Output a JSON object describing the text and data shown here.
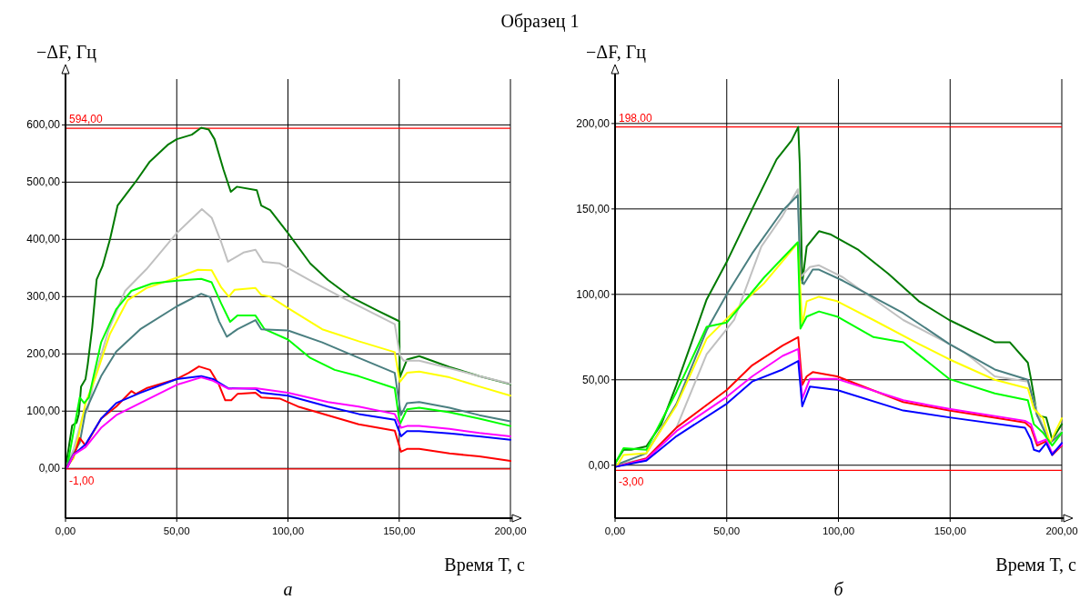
{
  "chart_data": [
    {
      "type": "line",
      "title": "Образец 1",
      "ylabel": "−ΔF, Гц",
      "xlabel": "Время T, с",
      "annotations": [
        "а"
      ],
      "grid": true,
      "line_style": "solid",
      "marker": "none",
      "xlim": [
        0,
        200
      ],
      "xticks": [
        {
          "value": 0,
          "label": "0,00"
        },
        {
          "value": 50,
          "label": "50,00"
        },
        {
          "value": 100,
          "label": "100,00"
        },
        {
          "value": 150,
          "label": "150,00"
        },
        {
          "value": 200,
          "label": "200,00"
        }
      ],
      "ylim": [
        -87,
        680
      ],
      "yticks": [
        {
          "value": 0,
          "label": "0,00"
        },
        {
          "value": 100,
          "label": "100,00"
        },
        {
          "value": 200,
          "label": "200,00"
        },
        {
          "value": 300,
          "label": "300,00"
        },
        {
          "value": 400,
          "label": "400,00"
        },
        {
          "value": 500,
          "label": "500,00"
        },
        {
          "value": 600,
          "label": "600,00"
        }
      ],
      "ref_lines": [
        {
          "axis": "y",
          "value": 594,
          "label": "594,00",
          "color": "#ff0000"
        },
        {
          "axis": "y",
          "value": -1,
          "label": "-1,00",
          "color": "#ff0000"
        }
      ],
      "series": [
        {
          "color": "#007a00",
          "x": [
            0,
            3,
            5,
            6,
            7,
            9,
            10,
            12,
            14,
            16.6,
            20,
            23.4,
            31.6,
            37.7,
            45.9,
            50,
            56.8,
            61,
            64.4,
            67,
            71,
            74.3,
            77,
            86,
            88,
            92,
            100,
            110,
            118,
            128,
            140,
            149.5,
            150,
            150.3,
            153.5,
            159,
            172.6,
            186,
            200
          ],
          "values": [
            0,
            75,
            80,
            95,
            143,
            156,
            182,
            246,
            330,
            353,
            400,
            459,
            501,
            535,
            565,
            575,
            583,
            595,
            592,
            575,
            522,
            483,
            492,
            486,
            459,
            451,
            411,
            358,
            329,
            300,
            276,
            258,
            257,
            159,
            190,
            196,
            177,
            161,
            147
          ]
        },
        {
          "color": "#c0c0c0",
          "x": [
            0,
            3.7,
            7.8,
            9.8,
            13.2,
            19.3,
            26.8,
            36.4,
            50,
            61.3,
            65.7,
            70,
            73,
            80,
            85.4,
            88.8,
            96.3,
            111,
            126,
            148,
            150.3,
            152,
            159,
            172.6,
            186,
            200
          ],
          "values": [
            0,
            34,
            93,
            100,
            161,
            241,
            310,
            348,
            411,
            453,
            438,
            395,
            361,
            377,
            382,
            361,
            358,
            326,
            295,
            252,
            198,
            188,
            188,
            175,
            161,
            148
          ]
        },
        {
          "color": "#ffff00",
          "x": [
            0,
            3.7,
            9,
            13.2,
            20,
            28,
            36.4,
            50,
            59.5,
            65.7,
            70,
            73.4,
            76,
            85.4,
            88,
            92,
            100,
            115.4,
            131.8,
            148,
            150.3,
            153.5,
            159,
            172.6,
            186,
            200
          ],
          "values": [
            0,
            18,
            114,
            156,
            235,
            294,
            315,
            333,
            347,
            346,
            316,
            300,
            312,
            315,
            303,
            300,
            280,
            243,
            222,
            203,
            151,
            167,
            169,
            159,
            143,
            127
          ]
        },
        {
          "color": "#00ff00",
          "x": [
            0,
            1,
            6.4,
            8.4,
            10.5,
            16,
            22.8,
            29.6,
            39,
            50,
            61,
            65.7,
            70,
            74,
            77.3,
            85.4,
            89.5,
            100,
            110,
            121,
            131.8,
            148,
            150.3,
            153.5,
            159,
            172.6,
            186,
            200
          ],
          "values": [
            0,
            8,
            124,
            114,
            124,
            220,
            278,
            310,
            323,
            328,
            331,
            325,
            288,
            256,
            267,
            267,
            243,
            225,
            193,
            172,
            161,
            140,
            77,
            103,
            106,
            98,
            87,
            74
          ]
        },
        {
          "color": "#4a7f80",
          "x": [
            0,
            1,
            6.4,
            9,
            16,
            22.8,
            33.6,
            50,
            61,
            65,
            69,
            72.5,
            77.3,
            85.4,
            88,
            100,
            115.4,
            131.8,
            148,
            150.8,
            153.5,
            159,
            172.6,
            186,
            200
          ],
          "values": [
            0,
            8,
            45,
            100,
            161,
            204,
            243,
            283,
            305,
            299,
            257,
            230,
            243,
            259,
            243,
            241,
            220,
            193,
            167,
            93,
            114,
            116,
            106,
            93,
            82
          ]
        },
        {
          "color": "#ff0000",
          "x": [
            0,
            1,
            4.4,
            6.4,
            9,
            16,
            22.8,
            29.6,
            31.6,
            36.4,
            50,
            55.4,
            60,
            65,
            69,
            71.8,
            74.5,
            77.3,
            85.4,
            88,
            96.3,
            104.5,
            131.8,
            148,
            150.8,
            153.5,
            159,
            172.6,
            186,
            200
          ],
          "values": [
            0,
            3,
            29,
            53,
            40,
            87,
            108,
            135,
            130,
            140,
            156,
            167,
            178,
            172,
            146,
            119,
            119,
            130,
            132,
            124,
            122,
            108,
            77,
            66,
            29,
            34,
            34,
            26,
            21,
            13
          ]
        },
        {
          "color": "#0000ff",
          "x": [
            0,
            1,
            3.7,
            9,
            16,
            22.8,
            33.6,
            50,
            61,
            66.3,
            73.2,
            85.4,
            88,
            100,
            118,
            131.8,
            148,
            150.8,
            153.5,
            159,
            172.6,
            186,
            200
          ],
          "values": [
            0,
            3,
            24,
            42,
            87,
            114,
            132,
            156,
            161,
            156,
            140,
            139,
            132,
            127,
            108,
            95,
            85,
            56,
            65,
            65,
            61,
            56,
            50
          ]
        },
        {
          "color": "#ff00ff",
          "x": [
            0,
            1,
            3.7,
            9,
            16,
            22.8,
            33.6,
            50,
            61,
            66.3,
            73.2,
            85.4,
            100,
            118,
            131.8,
            148,
            150.8,
            153.5,
            159,
            172.6,
            186,
            200
          ],
          "values": [
            0,
            3,
            24,
            37,
            71,
            93,
            114,
            146,
            159,
            153,
            139,
            140,
            132,
            116,
            108,
            95,
            71,
            74,
            74,
            69,
            62,
            56
          ]
        }
      ]
    },
    {
      "type": "line",
      "ylabel": "−ΔF, Гц",
      "xlabel": "Время T, с",
      "annotations": [
        "б"
      ],
      "grid": true,
      "line_style": "solid",
      "marker": "none",
      "xlim": [
        0,
        200
      ],
      "xticks": [
        {
          "value": 0,
          "label": "0,00"
        },
        {
          "value": 50,
          "label": "50,00"
        },
        {
          "value": 100,
          "label": "100,00"
        },
        {
          "value": 150,
          "label": "150,00"
        },
        {
          "value": 200,
          "label": "200,00"
        }
      ],
      "ylim": [
        -31,
        226
      ],
      "yticks": [
        {
          "value": 0,
          "label": "0,00"
        },
        {
          "value": 50,
          "label": "50,00"
        },
        {
          "value": 100,
          "label": "100,00"
        },
        {
          "value": 150,
          "label": "150,00"
        },
        {
          "value": 200,
          "label": "200,00"
        }
      ],
      "ref_lines": [
        {
          "axis": "y",
          "value": 198,
          "label": "198,00",
          "color": "#ff0000"
        },
        {
          "axis": "y",
          "value": -3,
          "label": "-3,00",
          "color": "#ff0000"
        }
      ],
      "series": [
        {
          "color": "#007a00",
          "x": [
            0,
            3.8,
            7.2,
            14,
            20.7,
            27.5,
            34.3,
            41,
            50,
            61.4,
            72.3,
            79,
            82,
            82.7,
            83.8,
            85.8,
            91.3,
            96.7,
            109,
            122.4,
            136,
            149.6,
            170,
            176.7,
            184.8,
            186.2,
            189,
            193,
            195.7,
            200
          ],
          "values": [
            1,
            9,
            9,
            11,
            24,
            47,
            72,
            97,
            119,
            150,
            179,
            190,
            198,
            176,
            106.6,
            128,
            137,
            135,
            126,
            112,
            96,
            85,
            72,
            72,
            60,
            50.5,
            29,
            28,
            15,
            24
          ]
        },
        {
          "color": "#c0c0c0",
          "x": [
            0,
            14,
            27.5,
            41,
            53.3,
            65.5,
            75,
            81.8,
            83,
            87.2,
            91.3,
            102,
            129,
            149.6,
            156,
            170,
            184.8,
            189,
            194.7,
            200
          ],
          "values": [
            0,
            4,
            22,
            65,
            85,
            128,
            146,
            161.5,
            110,
            116,
            117,
            110,
            85,
            71,
            66.5,
            52,
            49,
            31,
            13,
            20
          ]
        },
        {
          "color": "#4a7f80",
          "x": [
            0,
            14,
            27.5,
            41,
            50,
            61.4,
            75,
            81.8,
            83,
            84.5,
            88.5,
            91.3,
            102,
            129,
            149.6,
            170,
            184.8,
            189,
            194.7,
            200
          ],
          "values": [
            0,
            7,
            36,
            79,
            100,
            124,
            149,
            158,
            110,
            106,
            114.5,
            114.5,
            108,
            89,
            71,
            56,
            50,
            29,
            13,
            19
          ]
        },
        {
          "color": "#ffff00",
          "x": [
            0,
            3.8,
            14,
            27.5,
            41,
            58.7,
            66.8,
            81.8,
            83.8,
            85.8,
            91.3,
            99.4,
            115.7,
            136,
            149.6,
            170,
            184.8,
            187.5,
            191.6,
            194.7,
            200
          ],
          "values": [
            -2,
            6,
            7,
            35,
            74,
            97,
            106.6,
            130,
            82,
            96,
            98.6,
            96,
            85,
            71,
            62,
            50,
            45,
            33,
            27.5,
            13,
            27.5
          ]
        },
        {
          "color": "#00ff00",
          "x": [
            0,
            3.8,
            14,
            27.5,
            41,
            50,
            66.8,
            81.8,
            83,
            85.8,
            91.3,
            99.4,
            115.7,
            129,
            149.6,
            170,
            184.8,
            187.5,
            191.6,
            195.7,
            200
          ],
          "values": [
            1,
            10,
            9,
            43,
            81,
            83.5,
            110,
            130.5,
            80,
            87,
            90,
            87,
            75,
            72,
            50.5,
            42,
            38,
            24,
            19,
            11.5,
            19
          ]
        },
        {
          "color": "#ff0000",
          "x": [
            0,
            14,
            27.5,
            50,
            61.4,
            75,
            82,
            83.8,
            85.8,
            88.5,
            99.4,
            129,
            149.6,
            183.5,
            186.2,
            189,
            193,
            195.7,
            200
          ],
          "values": [
            -1,
            4,
            22,
            44,
            58.5,
            70,
            75,
            47,
            52,
            54.5,
            52,
            37,
            32,
            25,
            22,
            11.5,
            14,
            6,
            11.5
          ]
        },
        {
          "color": "#ff00ff",
          "x": [
            0,
            14,
            27.5,
            50,
            61.4,
            75,
            82,
            83.8,
            87.2,
            99.4,
            129,
            149.6,
            183.5,
            186.2,
            189,
            193,
            195.7,
            200
          ],
          "values": [
            -1,
            3.5,
            20,
            40,
            52,
            64,
            68,
            39,
            50.5,
            50.5,
            38,
            33,
            26,
            24,
            13,
            15,
            7,
            12
          ]
        },
        {
          "color": "#0000ff",
          "x": [
            0,
            14,
            27.5,
            50,
            61.4,
            75,
            82,
            83.8,
            87.2,
            99.4,
            129,
            149.6,
            183.5,
            186.2,
            187.5,
            190,
            193,
            195.7,
            200
          ],
          "values": [
            -1,
            2.7,
            17,
            36,
            49,
            56,
            61,
            34.5,
            46,
            44,
            32,
            28,
            22,
            15,
            9,
            8,
            13,
            6,
            13
          ]
        }
      ]
    }
  ]
}
